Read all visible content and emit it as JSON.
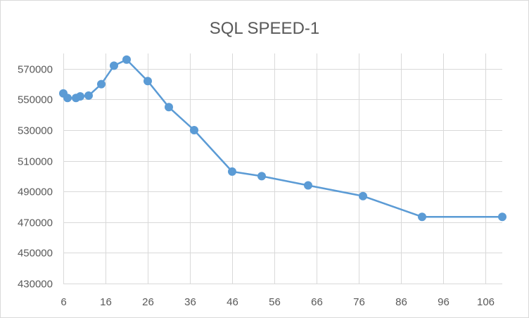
{
  "chart_data": {
    "type": "scatter",
    "title": "SQL SPEED-1",
    "xlabel": "",
    "ylabel": "",
    "xlim": [
      6,
      110
    ],
    "ylim": [
      430000,
      580000
    ],
    "x_ticks": [
      6,
      16,
      26,
      36,
      46,
      56,
      66,
      76,
      86,
      96,
      106
    ],
    "y_ticks": [
      430000,
      450000,
      470000,
      490000,
      510000,
      530000,
      550000,
      570000
    ],
    "grid": true,
    "legend": "none",
    "series": [
      {
        "name": "SQL SPEED-1",
        "color": "#5b9bd5",
        "x": [
          6,
          7,
          9,
          10,
          12,
          15,
          18,
          21,
          26,
          31,
          37,
          46,
          53,
          64,
          77,
          91,
          110
        ],
        "y": [
          554000,
          551000,
          551000,
          552000,
          552500,
          560000,
          572000,
          576000,
          562000,
          545000,
          530000,
          503000,
          500000,
          494000,
          487000,
          473500,
          473500
        ]
      }
    ]
  }
}
